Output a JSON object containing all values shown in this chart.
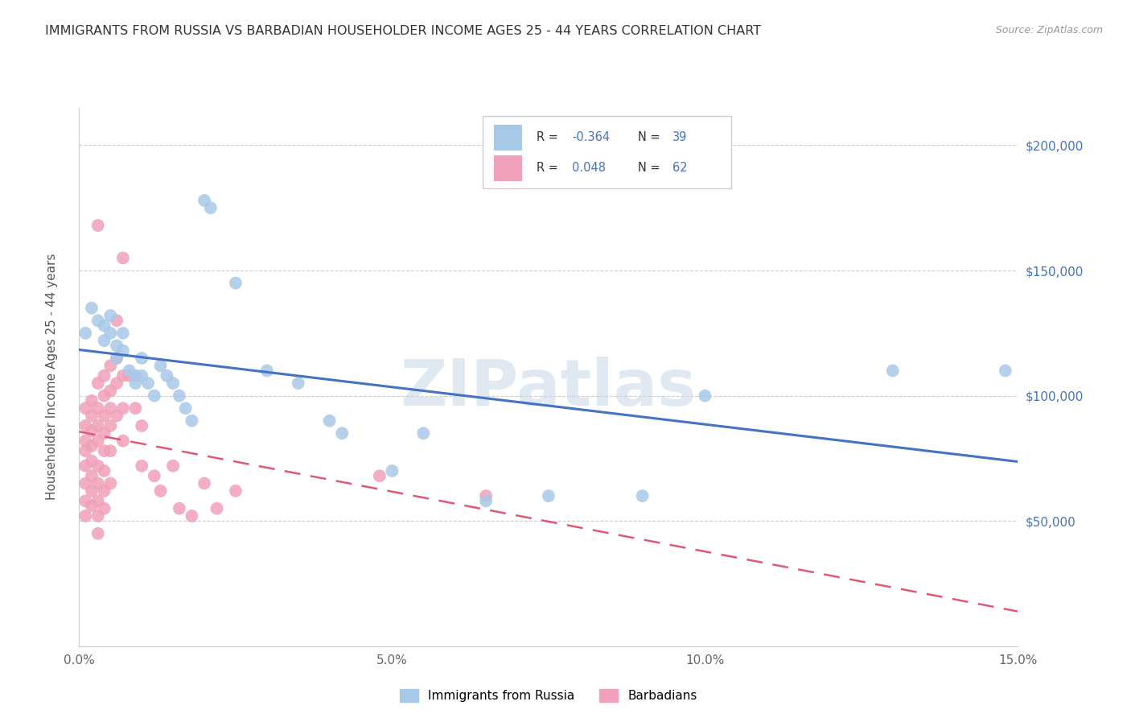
{
  "title": "IMMIGRANTS FROM RUSSIA VS BARBADIAN HOUSEHOLDER INCOME AGES 25 - 44 YEARS CORRELATION CHART",
  "source": "Source: ZipAtlas.com",
  "ylabel": "Householder Income Ages 25 - 44 years",
  "xmin": 0.0,
  "xmax": 0.15,
  "ymin": 0,
  "ymax": 215000,
  "russia_color": "#a8c8e8",
  "barbadian_color": "#f0a0b8",
  "russia_line_color": "#4472c4",
  "barbadian_line_color": "#e05878",
  "watermark": "ZIPatlas",
  "russia_scatter": [
    [
      0.001,
      125000
    ],
    [
      0.002,
      135000
    ],
    [
      0.003,
      130000
    ],
    [
      0.004,
      128000
    ],
    [
      0.004,
      122000
    ],
    [
      0.005,
      132000
    ],
    [
      0.005,
      125000
    ],
    [
      0.006,
      120000
    ],
    [
      0.006,
      115000
    ],
    [
      0.007,
      125000
    ],
    [
      0.007,
      118000
    ],
    [
      0.008,
      110000
    ],
    [
      0.009,
      108000
    ],
    [
      0.009,
      105000
    ],
    [
      0.01,
      115000
    ],
    [
      0.01,
      108000
    ],
    [
      0.011,
      105000
    ],
    [
      0.012,
      100000
    ],
    [
      0.013,
      112000
    ],
    [
      0.014,
      108000
    ],
    [
      0.015,
      105000
    ],
    [
      0.016,
      100000
    ],
    [
      0.017,
      95000
    ],
    [
      0.018,
      90000
    ],
    [
      0.02,
      178000
    ],
    [
      0.021,
      175000
    ],
    [
      0.025,
      145000
    ],
    [
      0.03,
      110000
    ],
    [
      0.035,
      105000
    ],
    [
      0.04,
      90000
    ],
    [
      0.042,
      85000
    ],
    [
      0.05,
      70000
    ],
    [
      0.055,
      85000
    ],
    [
      0.065,
      58000
    ],
    [
      0.075,
      60000
    ],
    [
      0.09,
      60000
    ],
    [
      0.1,
      100000
    ],
    [
      0.13,
      110000
    ],
    [
      0.148,
      110000
    ]
  ],
  "barbadian_scatter": [
    [
      0.001,
      95000
    ],
    [
      0.001,
      88000
    ],
    [
      0.001,
      82000
    ],
    [
      0.001,
      78000
    ],
    [
      0.001,
      72000
    ],
    [
      0.001,
      65000
    ],
    [
      0.001,
      58000
    ],
    [
      0.001,
      52000
    ],
    [
      0.002,
      98000
    ],
    [
      0.002,
      92000
    ],
    [
      0.002,
      86000
    ],
    [
      0.002,
      80000
    ],
    [
      0.002,
      74000
    ],
    [
      0.002,
      68000
    ],
    [
      0.002,
      62000
    ],
    [
      0.002,
      56000
    ],
    [
      0.003,
      168000
    ],
    [
      0.003,
      105000
    ],
    [
      0.003,
      95000
    ],
    [
      0.003,
      88000
    ],
    [
      0.003,
      82000
    ],
    [
      0.003,
      72000
    ],
    [
      0.003,
      65000
    ],
    [
      0.003,
      58000
    ],
    [
      0.003,
      52000
    ],
    [
      0.003,
      45000
    ],
    [
      0.004,
      108000
    ],
    [
      0.004,
      100000
    ],
    [
      0.004,
      92000
    ],
    [
      0.004,
      85000
    ],
    [
      0.004,
      78000
    ],
    [
      0.004,
      70000
    ],
    [
      0.004,
      62000
    ],
    [
      0.004,
      55000
    ],
    [
      0.005,
      112000
    ],
    [
      0.005,
      102000
    ],
    [
      0.005,
      95000
    ],
    [
      0.005,
      88000
    ],
    [
      0.005,
      78000
    ],
    [
      0.005,
      65000
    ],
    [
      0.006,
      130000
    ],
    [
      0.006,
      115000
    ],
    [
      0.006,
      105000
    ],
    [
      0.006,
      92000
    ],
    [
      0.007,
      155000
    ],
    [
      0.007,
      108000
    ],
    [
      0.007,
      95000
    ],
    [
      0.007,
      82000
    ],
    [
      0.008,
      108000
    ],
    [
      0.009,
      95000
    ],
    [
      0.01,
      88000
    ],
    [
      0.01,
      72000
    ],
    [
      0.012,
      68000
    ],
    [
      0.013,
      62000
    ],
    [
      0.015,
      72000
    ],
    [
      0.016,
      55000
    ],
    [
      0.018,
      52000
    ],
    [
      0.02,
      65000
    ],
    [
      0.022,
      55000
    ],
    [
      0.025,
      62000
    ],
    [
      0.048,
      68000
    ],
    [
      0.065,
      60000
    ]
  ]
}
